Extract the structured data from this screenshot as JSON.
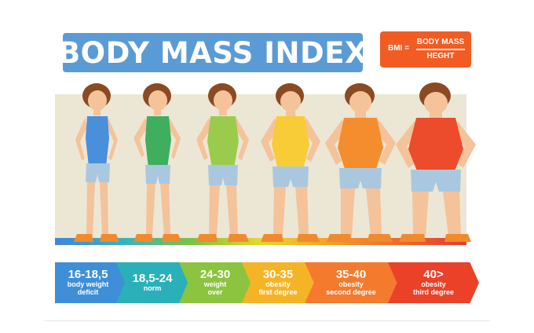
{
  "title": "BODY MASS INDEX",
  "formula": {
    "lhs": "BMI =",
    "numerator": "BODY MASS",
    "denominator": "HEGHT"
  },
  "figures": [
    {
      "name": "deficit",
      "color": "#4a8fd9"
    },
    {
      "name": "norm",
      "color": "#3fae5e"
    },
    {
      "name": "over",
      "color": "#9bcb4c"
    },
    {
      "name": "first",
      "color": "#f7cc36"
    },
    {
      "name": "second",
      "color": "#f48d2e"
    },
    {
      "name": "third",
      "color": "#ec4b2c"
    }
  ],
  "categories": [
    {
      "range": "16-18,5",
      "desc1": "body weight",
      "desc2": "deficit"
    },
    {
      "range": "18,5-24",
      "desc1": "norm",
      "desc2": ""
    },
    {
      "range": "24-30",
      "desc1": "weight",
      "desc2": "over"
    },
    {
      "range": "30-35",
      "desc1": "obesity",
      "desc2": "first degree"
    },
    {
      "range": "35-40",
      "desc1": "obesity",
      "desc2": "second degree"
    },
    {
      "range": "40>",
      "desc1": "obesity",
      "desc2": "third degree"
    }
  ]
}
